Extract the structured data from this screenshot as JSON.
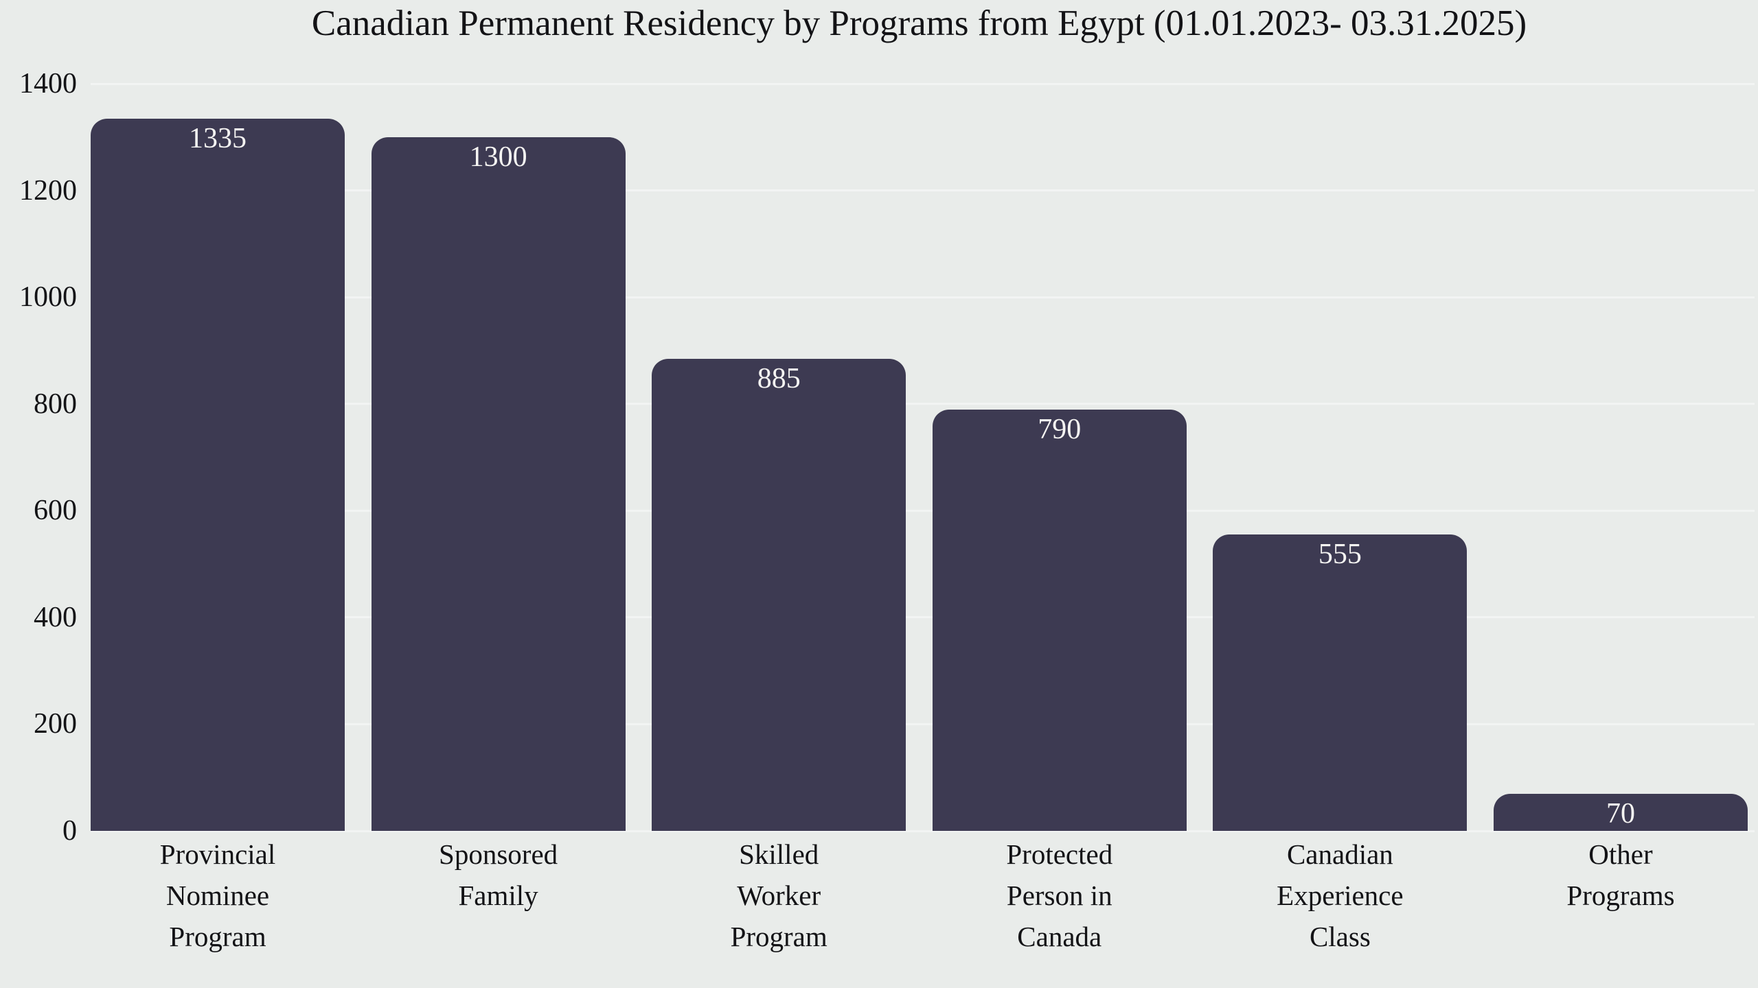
{
  "colors": {
    "background": "#E9ECEA",
    "bar": "#3D3A52",
    "gridline": "#F2F4F3",
    "axis_text": "#131316",
    "value_label_text": "#F5F4F2"
  },
  "chart_data": {
    "type": "bar",
    "title": "Canadian Permanent Residency by Programs from Egypt (01.01.2023- 03.31.2025)",
    "categories": [
      "Provincial\nNominee\nProgram",
      "Sponsored\nFamily",
      "Skilled\nWorker\nProgram",
      "Protected\nPerson in\nCanada",
      "Canadian\nExperience\nClass",
      "Other\nPrograms"
    ],
    "values": [
      1335,
      1300,
      885,
      790,
      555,
      70
    ],
    "value_labels_shown": true,
    "xlabel": "",
    "ylabel": "",
    "ylim": [
      0,
      1400
    ],
    "yticks": [
      0,
      200,
      400,
      600,
      800,
      1000,
      1200,
      1400
    ],
    "grid": true,
    "legend": null
  }
}
